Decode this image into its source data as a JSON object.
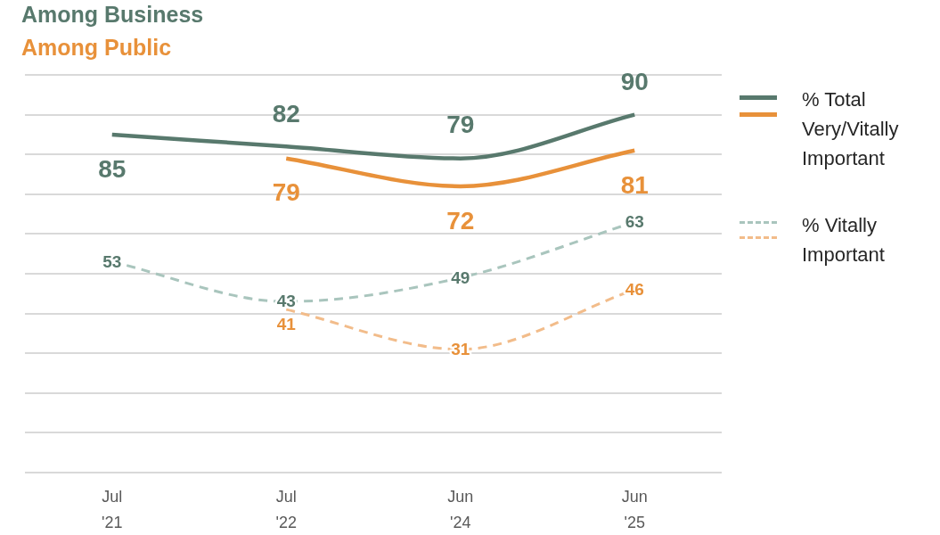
{
  "chart_data": {
    "type": "line",
    "title": "Among Business",
    "subtitle": "Among Public",
    "categories": [
      "Jul '21",
      "Jul '22",
      "Jun '24",
      "Jun '25"
    ],
    "series": [
      {
        "name": "% Total Very/Vitally Important",
        "color": "#58796d",
        "line_style": "solid",
        "values": [
          85,
          82,
          79,
          90
        ]
      },
      {
        "color": "#e8913a",
        "line_style": "solid",
        "values": [
          null,
          79,
          72,
          81
        ]
      },
      {
        "name": "% Vitally Important",
        "color": "#a9c5bd",
        "line_style": "dashed",
        "values": [
          53,
          43,
          49,
          63
        ]
      },
      {
        "color": "#f2bc8a",
        "line_style": "dashed",
        "values": [
          null,
          41,
          31,
          46
        ]
      }
    ],
    "ylim": [
      0,
      100
    ],
    "yticks": [
      {
        "value": 0,
        "label": null
      },
      {
        "value": 10,
        "label": null
      },
      {
        "value": 20,
        "label": null
      },
      {
        "value": 30,
        "label": null
      },
      {
        "value": 40,
        "label": null
      },
      {
        "value": 50,
        "label": null
      },
      {
        "value": 60,
        "label": null
      },
      {
        "value": 70,
        "label": null
      },
      {
        "value": 80,
        "label": null
      },
      {
        "value": 90,
        "label": null
      },
      {
        "value": 100,
        "label": null
      }
    ],
    "grid": "y",
    "legend": "right",
    "tick_labels": "x",
    "marker": "none",
    "data_labels": true
  }
}
